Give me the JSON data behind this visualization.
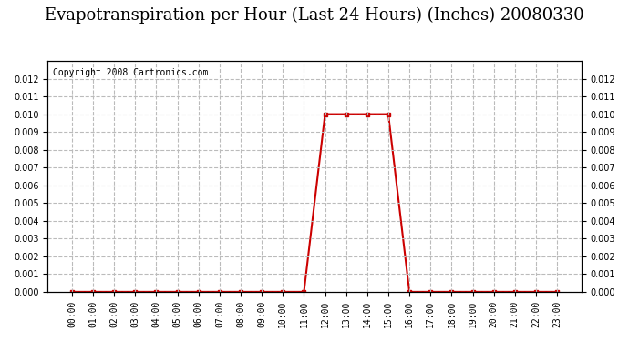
{
  "title": "Evapotranspiration per Hour (Last 24 Hours) (Inches) 20080330",
  "copyright_text": "Copyright 2008 Cartronics.com",
  "hours": [
    "00:00",
    "01:00",
    "02:00",
    "03:00",
    "04:00",
    "05:00",
    "06:00",
    "07:00",
    "08:00",
    "09:00",
    "10:00",
    "11:00",
    "12:00",
    "13:00",
    "14:00",
    "15:00",
    "16:00",
    "17:00",
    "18:00",
    "19:00",
    "20:00",
    "21:00",
    "22:00",
    "23:00"
  ],
  "values": [
    0.0,
    0.0,
    0.0,
    0.0,
    0.0,
    0.0,
    0.0,
    0.0,
    0.0,
    0.0,
    0.0,
    0.0,
    0.01,
    0.01,
    0.01,
    0.01,
    0.0,
    0.0,
    0.0,
    0.0,
    0.0,
    0.0,
    0.0,
    0.0
  ],
  "line_color": "#cc0000",
  "marker": "s",
  "marker_size": 3,
  "ylim": [
    0,
    0.013
  ],
  "yticks": [
    0.0,
    0.001,
    0.002,
    0.003,
    0.004,
    0.005,
    0.006,
    0.007,
    0.008,
    0.009,
    0.01,
    0.011,
    0.012
  ],
  "grid_color": "#bbbbbb",
  "grid_style": "--",
  "bg_color": "#ffffff",
  "title_fontsize": 13,
  "copyright_fontsize": 7,
  "tick_fontsize": 7,
  "figsize": [
    6.9,
    3.75
  ],
  "dpi": 100
}
